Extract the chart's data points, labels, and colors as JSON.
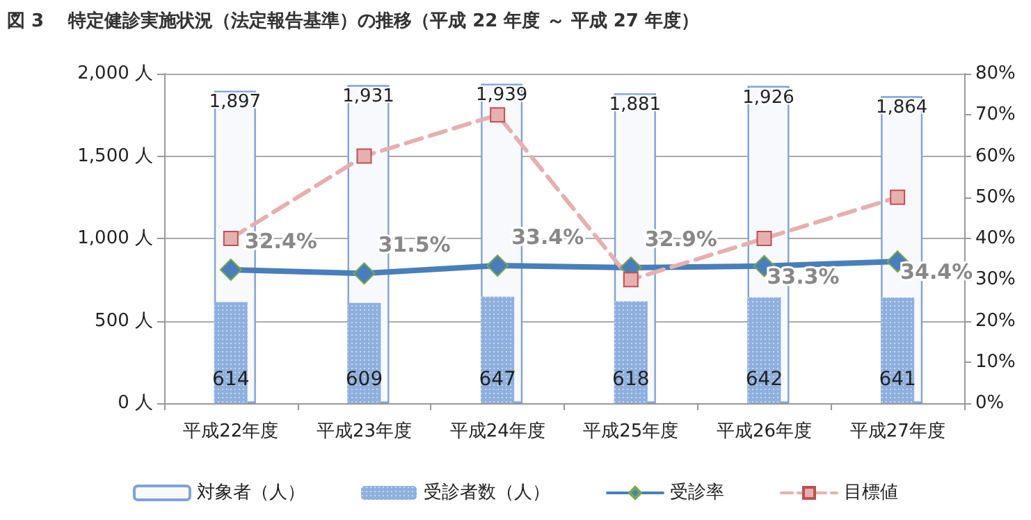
{
  "chart_data": {
    "type": "bar",
    "title": "図 3　 特定健診実施状況（法定報告基準）の推移（平成 22 年度 ～ 平成 27 年度）",
    "categories": [
      "平成22年度",
      "平成23年度",
      "平成24年度",
      "平成25年度",
      "平成26年度",
      "平成27年度"
    ],
    "series": [
      {
        "name": "対象者（人）",
        "color": "#7fa3d6",
        "values": [
          1897,
          1931,
          1939,
          1881,
          1926,
          1864
        ],
        "value_labels": [
          "1,897",
          "1,931",
          "1,939",
          "1,881",
          "1,926",
          "1,864"
        ]
      },
      {
        "name": "受診者数（人）",
        "color": "#8fb0de",
        "values": [
          614,
          609,
          647,
          618,
          642,
          641
        ],
        "value_labels": [
          "614",
          "609",
          "647",
          "618",
          "642",
          "641"
        ]
      },
      {
        "name": "受診率",
        "type": "line",
        "axis": "y2",
        "color": "#4a7ebb",
        "marker": "diamond",
        "line_style": "solid",
        "values": [
          32.4,
          31.5,
          33.4,
          32.9,
          33.3,
          34.4
        ],
        "value_labels": [
          "32.4%",
          "31.5%",
          "33.4%",
          "32.9%",
          "33.3%",
          "34.4%"
        ]
      },
      {
        "name": "目標値",
        "type": "line",
        "axis": "y2",
        "color": "#e6b0b0",
        "marker": "square",
        "line_style": "dashed",
        "values": [
          40,
          60,
          70,
          30,
          40,
          50
        ]
      }
    ],
    "ylim": [
      0,
      2000
    ],
    "yticks": [
      {
        "value": 0,
        "label": "0 人"
      },
      {
        "value": 500,
        "label": "500 人"
      },
      {
        "value": 1000,
        "label": "1,000 人"
      },
      {
        "value": 1500,
        "label": "1,500 人"
      },
      {
        "value": 2000,
        "label": "2,000 人"
      }
    ],
    "y2lim": [
      0,
      80
    ],
    "y2ticks": [
      {
        "value": 0,
        "label": "0%"
      },
      {
        "value": 10,
        "label": "10%"
      },
      {
        "value": 20,
        "label": "20%"
      },
      {
        "value": 30,
        "label": "30%"
      },
      {
        "value": 40,
        "label": "40%"
      },
      {
        "value": 50,
        "label": "50%"
      },
      {
        "value": 60,
        "label": "60%"
      },
      {
        "value": 70,
        "label": "70%"
      },
      {
        "value": 80,
        "label": "80%"
      }
    ],
    "grid": "y",
    "legend": "bottom"
  }
}
